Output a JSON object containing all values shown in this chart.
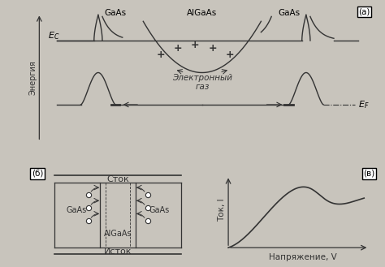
{
  "bg_color": "#c8c4bc",
  "panel_bg": "#dedad0",
  "panel_a_label": "(а)",
  "panel_b_label": "(б)",
  "panel_v_label": "(в)",
  "gaas_left_label": "GaAs",
  "algaas_label": "AlGaAs",
  "gaas_right_label": "GaAs",
  "ec_label": "$E_C$",
  "ef_label": "$E_F$",
  "electron_gas_label": "Электронный\nгаз",
  "energy_label": "Энергия",
  "current_label": "Ток, I",
  "voltage_label": "Напряжение, V",
  "stok_label": "Сток",
  "istok_label": "Исток",
  "line_color": "#333333"
}
